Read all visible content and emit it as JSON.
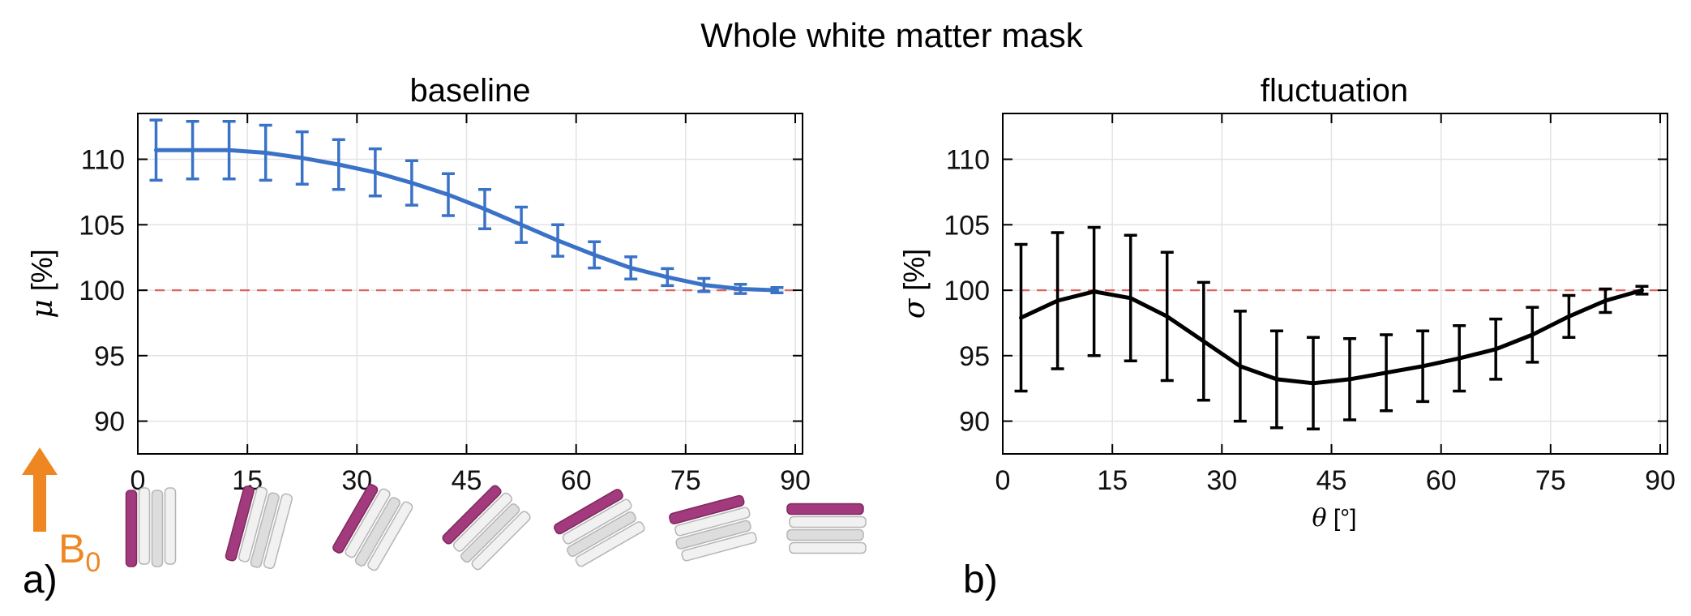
{
  "title": "Whole white matter mask",
  "panels": {
    "a": {
      "subtitle": "baseline",
      "ylabel_greek": "μ",
      "ylabel_units": " [%]",
      "corner_label": "a)"
    },
    "b": {
      "subtitle": "fluctuation",
      "ylabel_greek": "σ",
      "ylabel_units": " [%]",
      "xlabel_greek": "θ",
      "xlabel_units": " [°]",
      "corner_label": "b)"
    }
  },
  "b0": {
    "main": "B",
    "sub": "0",
    "color": "#ee8722"
  },
  "fiber_glyphs": {
    "angles": [
      0,
      15,
      30,
      45,
      60,
      75,
      90
    ],
    "front_color": "#a23a7d",
    "front_stroke": "#7d2a5f",
    "sheet_color": "#f1f1f1",
    "sheet_alt_color": "#dddddd",
    "sheet_stroke": "#b5b5b5"
  },
  "chart_data": [
    {
      "type": "line",
      "name": "baseline",
      "color": "#3a72c8",
      "x": [
        2.5,
        7.5,
        12.5,
        17.5,
        22.5,
        27.5,
        32.5,
        37.5,
        42.5,
        47.5,
        52.5,
        57.5,
        62.5,
        67.5,
        72.5,
        77.5,
        82.5,
        87.5
      ],
      "y": [
        110.7,
        110.7,
        110.7,
        110.5,
        110.1,
        109.6,
        109.0,
        108.2,
        107.3,
        106.2,
        105.0,
        103.8,
        102.7,
        101.7,
        101.0,
        100.4,
        100.1,
        100.0
      ],
      "yerr": [
        2.3,
        2.2,
        2.2,
        2.1,
        2.0,
        1.9,
        1.8,
        1.7,
        1.6,
        1.5,
        1.35,
        1.2,
        1.0,
        0.85,
        0.65,
        0.5,
        0.35,
        0.2
      ],
      "xticks": [
        0,
        15,
        30,
        45,
        60,
        75,
        90
      ],
      "yticks": [
        90,
        95,
        100,
        105,
        110
      ],
      "xlim": [
        0,
        91
      ],
      "ylim": [
        87.5,
        113.5
      ],
      "grid": true,
      "refline": 100,
      "refline_color": "#e06060",
      "xlabel": "",
      "ylabel": "μ [%]"
    },
    {
      "type": "line",
      "name": "fluctuation",
      "color": "#000000",
      "x": [
        2.5,
        7.5,
        12.5,
        17.5,
        22.5,
        27.5,
        32.5,
        37.5,
        42.5,
        47.5,
        52.5,
        57.5,
        62.5,
        67.5,
        72.5,
        77.5,
        82.5,
        87.5
      ],
      "y": [
        97.9,
        99.2,
        99.9,
        99.4,
        98.0,
        96.1,
        94.2,
        93.2,
        92.9,
        93.2,
        93.7,
        94.2,
        94.8,
        95.5,
        96.6,
        98.0,
        99.2,
        100.0
      ],
      "yerr": [
        5.6,
        5.2,
        4.9,
        4.8,
        4.9,
        4.5,
        4.2,
        3.7,
        3.5,
        3.1,
        2.9,
        2.7,
        2.5,
        2.3,
        2.1,
        1.6,
        0.9,
        0.3
      ],
      "xticks": [
        0,
        15,
        30,
        45,
        60,
        75,
        90
      ],
      "yticks": [
        90,
        95,
        100,
        105,
        110
      ],
      "xlim": [
        0,
        91
      ],
      "ylim": [
        87.5,
        113.5
      ],
      "grid": true,
      "refline": 100,
      "refline_color": "#e06060",
      "xlabel": "θ [°]",
      "ylabel": "σ [%]"
    }
  ]
}
